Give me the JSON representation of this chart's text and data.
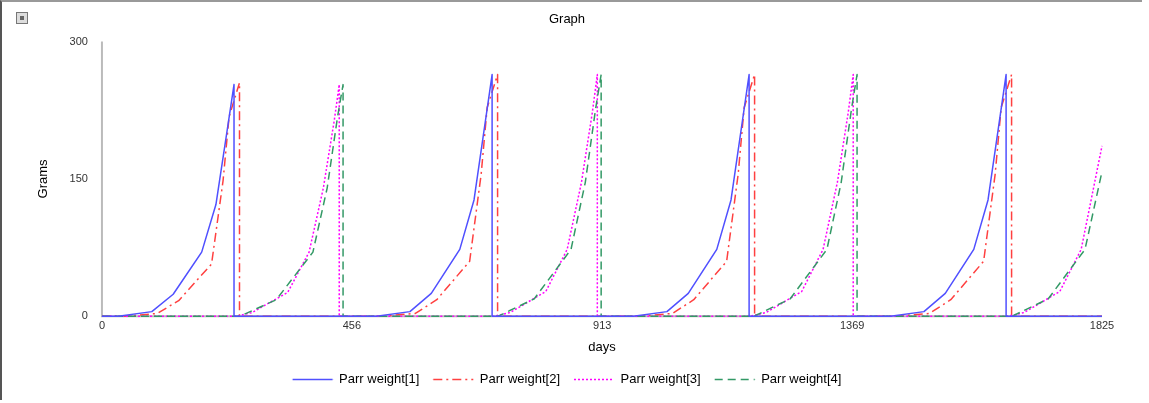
{
  "chart_data": {
    "type": "line",
    "title": "Graph",
    "xlabel": "days",
    "ylabel": "Grams",
    "xlim": [
      0,
      1825
    ],
    "xticks": [
      0,
      456,
      913,
      1369,
      1825
    ],
    "ylim": [
      0,
      300
    ],
    "yticks": [
      0,
      150,
      300
    ],
    "grid": false,
    "legend": "bottom",
    "marker": "none",
    "series": [
      {
        "name": "Parr weight[1]",
        "color": "#5050ff",
        "line_style": "solid",
        "x": [
          0,
          30,
          91,
          130,
          182,
          208,
          228,
          241,
          241,
          501,
          562,
          601,
          653,
          679,
          699,
          712,
          712,
          970,
          1031,
          1070,
          1122,
          1148,
          1168,
          1181,
          1181,
          1439,
          1500,
          1539,
          1591,
          1617,
          1637,
          1650,
          1650,
          1825
        ],
        "values": [
          0,
          0,
          5,
          24,
          70,
          122,
          201,
          253,
          0,
          0,
          5,
          25,
          73,
          127,
          210,
          264,
          0,
          0,
          5,
          25,
          73,
          127,
          210,
          264,
          0,
          0,
          5,
          25,
          73,
          127,
          210,
          264,
          0,
          0
        ]
      },
      {
        "name": "Parr weight[2]",
        "color": "#ff4040",
        "line_style": "dashdot",
        "x": [
          0,
          40,
          101,
          140,
          200,
          221,
          232,
          251,
          251,
          511,
          572,
          611,
          671,
          692,
          703,
          722,
          722,
          980,
          1041,
          1080,
          1140,
          1161,
          1172,
          1191,
          1191,
          1449,
          1510,
          1549,
          1609,
          1630,
          1641,
          1660,
          1660,
          1825
        ],
        "values": [
          0,
          0,
          3,
          17,
          57,
          148,
          218,
          255,
          0,
          0,
          3,
          18,
          60,
          155,
          228,
          264,
          0,
          0,
          3,
          18,
          60,
          155,
          228,
          264,
          0,
          0,
          3,
          18,
          60,
          155,
          228,
          264,
          0,
          0
        ]
      },
      {
        "name": "Parr weight[3]",
        "color": "#ff00ff",
        "line_style": "dotted",
        "x": [
          0,
          245,
          274,
          339,
          378,
          404,
          424,
          433,
          433,
          716,
          745,
          810,
          849,
          875,
          895,
          904,
          904,
          1183,
          1212,
          1277,
          1316,
          1342,
          1362,
          1371,
          1371,
          1654,
          1683,
          1748,
          1787,
          1825
        ],
        "values": [
          0,
          0,
          4,
          26,
          70,
          140,
          214,
          253,
          0,
          0,
          4,
          27,
          73,
          146,
          223,
          264,
          0,
          0,
          4,
          27,
          73,
          146,
          223,
          264,
          0,
          0,
          4,
          27,
          73,
          186
        ]
      },
      {
        "name": "Parr weight[4]",
        "color": "#339966",
        "line_style": "dashed",
        "x": [
          0,
          252,
          318,
          385,
          411,
          430,
          440,
          440,
          723,
          789,
          856,
          882,
          901,
          911,
          911,
          1190,
          1256,
          1323,
          1349,
          1368,
          1378,
          1378,
          1661,
          1727,
          1794,
          1825
        ],
        "values": [
          0,
          0,
          18,
          70,
          140,
          218,
          253,
          0,
          0,
          19,
          73,
          146,
          227,
          264,
          0,
          0,
          19,
          73,
          146,
          227,
          264,
          0,
          0,
          19,
          73,
          158
        ]
      }
    ]
  }
}
